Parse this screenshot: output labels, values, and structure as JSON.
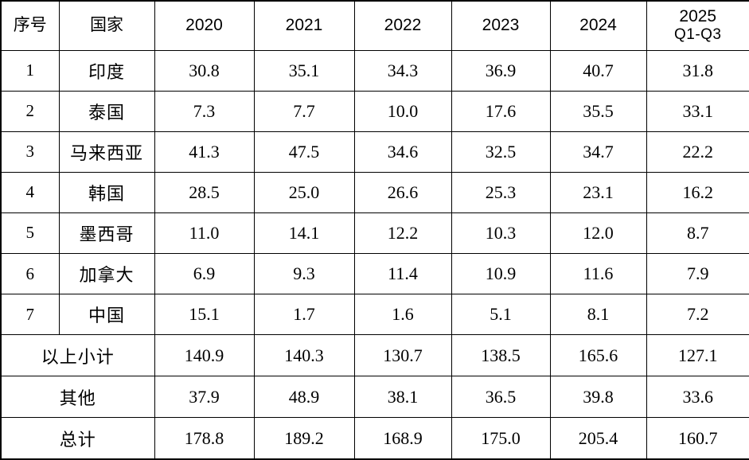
{
  "table": {
    "columns": [
      {
        "id": "index",
        "label": "序号"
      },
      {
        "id": "country",
        "label": "国家"
      },
      {
        "id": "y2020",
        "label": "2020"
      },
      {
        "id": "y2021",
        "label": "2021"
      },
      {
        "id": "y2022",
        "label": "2022"
      },
      {
        "id": "y2023",
        "label": "2023"
      },
      {
        "id": "y2024",
        "label": "2024"
      },
      {
        "id": "y2025",
        "label": "2025",
        "sublabel": "Q1-Q3"
      }
    ],
    "rows": [
      {
        "index": "1",
        "country": "印度",
        "values": [
          "30.8",
          "35.1",
          "34.3",
          "36.9",
          "40.7",
          "31.8"
        ]
      },
      {
        "index": "2",
        "country": "泰国",
        "values": [
          "7.3",
          "7.7",
          "10.0",
          "17.6",
          "35.5",
          "33.1"
        ]
      },
      {
        "index": "3",
        "country": "马来西亚",
        "values": [
          "41.3",
          "47.5",
          "34.6",
          "32.5",
          "34.7",
          "22.2"
        ]
      },
      {
        "index": "4",
        "country": "韩国",
        "values": [
          "28.5",
          "25.0",
          "26.6",
          "25.3",
          "23.1",
          "16.2"
        ]
      },
      {
        "index": "5",
        "country": "墨西哥",
        "values": [
          "11.0",
          "14.1",
          "12.2",
          "10.3",
          "12.0",
          "8.7"
        ]
      },
      {
        "index": "6",
        "country": "加拿大",
        "values": [
          "6.9",
          "9.3",
          "11.4",
          "10.9",
          "11.6",
          "7.9"
        ]
      },
      {
        "index": "7",
        "country": "中国",
        "values": [
          "15.1",
          "1.7",
          "1.6",
          "5.1",
          "8.1",
          "7.2"
        ]
      }
    ],
    "summary_rows": [
      {
        "label": "以上小计",
        "values": [
          "140.9",
          "140.3",
          "130.7",
          "138.5",
          "165.6",
          "127.1"
        ]
      },
      {
        "label": "其他",
        "values": [
          "37.9",
          "48.9",
          "38.1",
          "36.5",
          "39.8",
          "33.6"
        ]
      },
      {
        "label": "总计",
        "values": [
          "178.8",
          "189.2",
          "168.9",
          "175.0",
          "205.4",
          "160.7"
        ]
      }
    ]
  },
  "colors": {
    "border": "#000000",
    "text": "#000000",
    "background": "#ffffff"
  },
  "chart_data": {
    "type": "table",
    "title": "",
    "categories": [
      "2020",
      "2021",
      "2022",
      "2023",
      "2024",
      "2025 Q1-Q3"
    ],
    "series": [
      {
        "name": "印度",
        "values": [
          30.8,
          35.1,
          34.3,
          36.9,
          40.7,
          31.8
        ]
      },
      {
        "name": "泰国",
        "values": [
          7.3,
          7.7,
          10.0,
          17.6,
          35.5,
          33.1
        ]
      },
      {
        "name": "马来西亚",
        "values": [
          41.3,
          47.5,
          34.6,
          32.5,
          34.7,
          22.2
        ]
      },
      {
        "name": "韩国",
        "values": [
          28.5,
          25.0,
          26.6,
          25.3,
          23.1,
          16.2
        ]
      },
      {
        "name": "墨西哥",
        "values": [
          11.0,
          14.1,
          12.2,
          10.3,
          12.0,
          8.7
        ]
      },
      {
        "name": "加拿大",
        "values": [
          6.9,
          9.3,
          11.4,
          10.9,
          11.6,
          7.9
        ]
      },
      {
        "name": "中国",
        "values": [
          15.1,
          1.7,
          1.6,
          5.1,
          8.1,
          7.2
        ]
      },
      {
        "name": "以上小计",
        "values": [
          140.9,
          140.3,
          130.7,
          138.5,
          165.6,
          127.1
        ]
      },
      {
        "name": "其他",
        "values": [
          37.9,
          48.9,
          38.1,
          36.5,
          39.8,
          33.6
        ]
      },
      {
        "name": "总计",
        "values": [
          178.8,
          189.2,
          168.9,
          175.0,
          205.4,
          160.7
        ]
      }
    ]
  }
}
